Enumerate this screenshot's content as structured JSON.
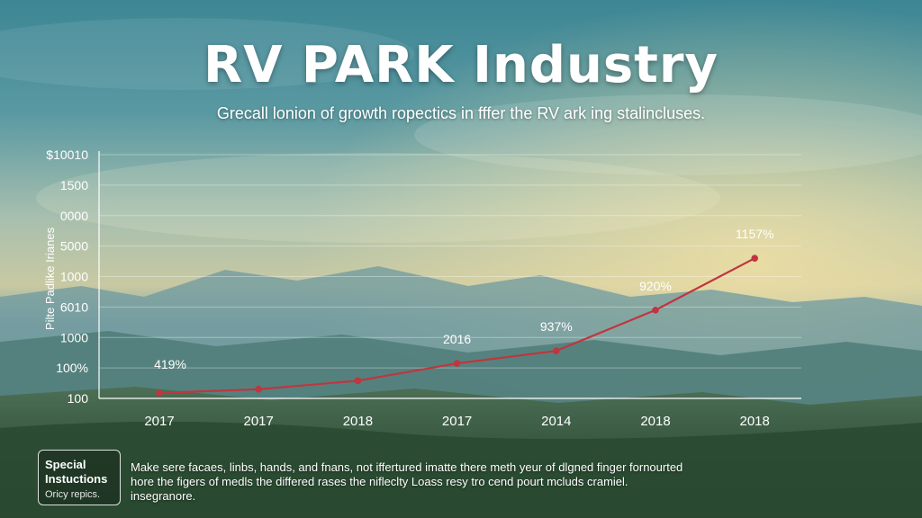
{
  "title": "RV PARK Industry",
  "subtitle": "Grecall lonion of growth ropectics in fffer the RV ark ing stalincluses.",
  "note": {
    "heading_line1": "Special",
    "heading_line2": "Instuctions",
    "sublabel": "Oricy repics.",
    "lines": [
      "Make sere facaes, linbs, hands, and fnans, not iffertured imatte there meth yeur of dlgned finger fornourted",
      "hore the figers of medls the differed rases the nifleclty Loass resy tro cend pourt mcluds cramiel.",
      "insegranore."
    ]
  },
  "colors": {
    "line": "#c0353f",
    "axis": "#ffffff",
    "grid": "rgba(255,255,255,0.35)"
  },
  "chart_data": {
    "type": "line",
    "title": "RV PARK Industry",
    "ylabel": "Pilte Padlike Irianes",
    "y_ticks": [
      "$10010",
      "1500",
      "0000",
      "5000",
      "1000",
      "6010",
      "1000",
      "100%",
      "100"
    ],
    "x_ticks": [
      "2017",
      "2017",
      "2018",
      "2017",
      "2014",
      "2018",
      "2018"
    ],
    "values": [
      180,
      300,
      580,
      1150,
      1560,
      2900,
      4600
    ],
    "ylim": [
      0,
      8000
    ],
    "point_labels": [
      "419%",
      "",
      "",
      "2016",
      "937%",
      "920%",
      "1157%"
    ],
    "grid": true
  }
}
